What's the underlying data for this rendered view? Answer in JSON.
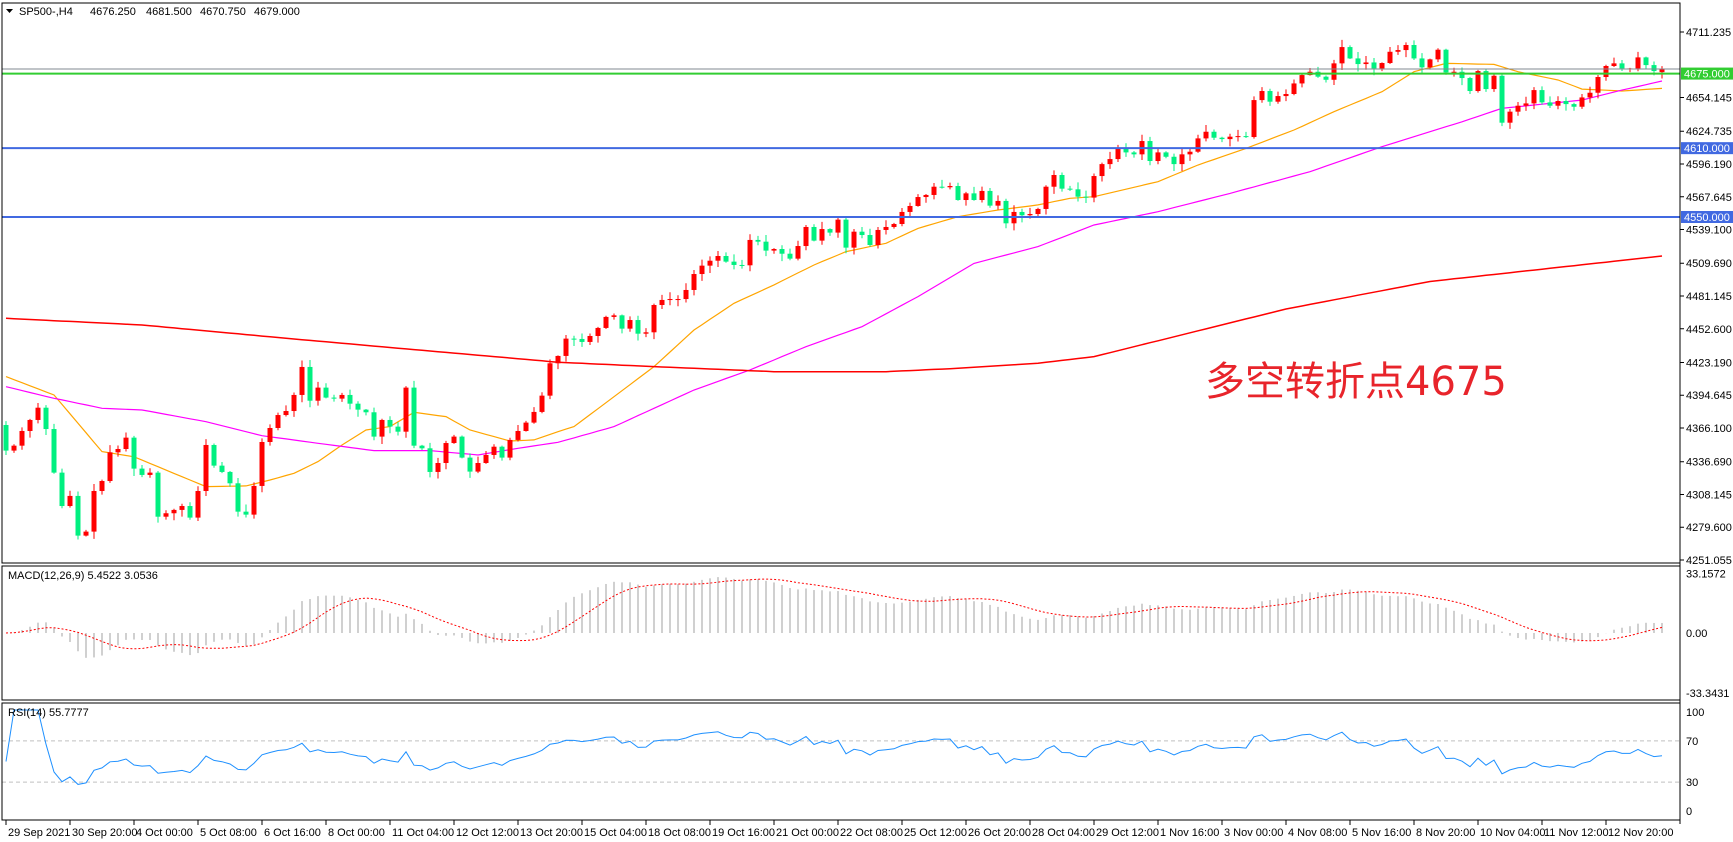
{
  "header": {
    "symbol": "SP500-,H4",
    "open": "4676.250",
    "high": "4681.500",
    "low": "4670.750",
    "close": "4679.000"
  },
  "annotation": "多空转折点4675",
  "colors": {
    "bull": "#ff0000",
    "bear": "#00f080",
    "ma_fast": "#ffa500",
    "ma_mid": "#ff00ff",
    "ma_slow": "#ff0000",
    "level_green": "#32cd32",
    "level_blue": "#4169e1",
    "bid_line": "#808890",
    "macd_hist": "#c0c0c0",
    "macd_signal": "#ff0000",
    "rsi": "#1e90ff"
  },
  "price_axis": {
    "ylim": [
      4251.055,
      4711.235
    ],
    "ticks": [
      "4711.235",
      "4654.145",
      "4624.735",
      "4596.190",
      "4567.645",
      "4539.100",
      "4509.690",
      "4481.145",
      "4452.600",
      "4423.190",
      "4394.645",
      "4366.100",
      "4336.690",
      "4308.145",
      "4279.600",
      "4251.055"
    ]
  },
  "levels": [
    {
      "value": 4675.0,
      "label": "4675.000",
      "color": "#32cd32"
    },
    {
      "value": 4610.0,
      "label": "4610.000",
      "color": "#4169e1"
    },
    {
      "value": 4550.0,
      "label": "4550.000",
      "color": "#4169e1"
    }
  ],
  "bid": 4679.0,
  "chart_data": {
    "type": "candlestick",
    "first_open": 4368.7,
    "closes": [
      4346.4,
      4350.7,
      4363.5,
      4373.1,
      4383.8,
      4365.2,
      4327.2,
      4298.1,
      4306.9,
      4272.3,
      4275.8,
      4311.2,
      4319.9,
      4344.9,
      4347.8,
      4357.7,
      4330.7,
      4325.2,
      4327.2,
      4288.8,
      4291.8,
      4294.7,
      4298.1,
      4288.0,
      4311.2,
      4351.3,
      4333.3,
      4327.8,
      4317.9,
      4293.2,
      4290.6,
      4315.6,
      4353.9,
      4366.1,
      4377.4,
      4380.9,
      4394.9,
      4419.3,
      4389.9,
      4401.3,
      4392.6,
      4391.7,
      4394.9,
      4387.3,
      4382.1,
      4379.8,
      4358.6,
      4373.1,
      4367.3,
      4362.9,
      4401.3,
      4350.7,
      4348.4,
      4327.8,
      4335.6,
      4353.0,
      4358.6,
      4340.3,
      4328.1,
      4335.6,
      4342.6,
      4349.8,
      4340.3,
      4355.7,
      4363.5,
      4370.8,
      4380.1,
      4394.3,
      4422.5,
      4428.9,
      4444.0,
      4443.7,
      4441.1,
      4446.3,
      4453.3,
      4462.9,
      4464.3,
      4452.7,
      4460.2,
      4448.3,
      4449.5,
      4473.3,
      4477.7,
      4478.5,
      4478.5,
      4486.4,
      4500.3,
      4507.6,
      4511.9,
      4516.0,
      4511.1,
      4508.2,
      4507.9,
      4530.0,
      4528.5,
      4520.7,
      4522.1,
      4518.0,
      4513.7,
      4524.7,
      4541.3,
      4529.4,
      4539.5,
      4536.4,
      4547.7,
      4523.3,
      4537.2,
      4534.3,
      4525.6,
      4538.7,
      4541.3,
      4543.9,
      4554.4,
      4559.6,
      4567.4,
      4569.2,
      4576.4,
      4575.9,
      4577.0,
      4564.8,
      4570.6,
      4564.8,
      4572.7,
      4559.9,
      4564.0,
      4544.5,
      4554.4,
      4551.5,
      4552.6,
      4557.0,
      4576.4,
      4586.6,
      4574.7,
      4574.1,
      4567.7,
      4566.9,
      4585.7,
      4596.1,
      4600.5,
      4610.4,
      4606.3,
      4604.6,
      4616.2,
      4598.8,
      4606.3,
      4602.5,
      4596.1,
      4604.6,
      4606.9,
      4618.5,
      4624.3,
      4619.1,
      4617.9,
      4620.0,
      4620.5,
      4619.7,
      4651.9,
      4659.8,
      4650.5,
      4655.4,
      4657.2,
      4666.4,
      4673.7,
      4676.6,
      4672.3,
      4669.6,
      4683.9,
      4698.1,
      4688.2,
      4683.3,
      4684.7,
      4679.5,
      4684.2,
      4694.0,
      4695.5,
      4699.9,
      4688.2,
      4680.4,
      4687.4,
      4695.8,
      4676.0,
      4676.6,
      4671.1,
      4659.8,
      4677.2,
      4661.5,
      4673.1,
      4632.2,
      4641.8,
      4647.0,
      4649.0,
      4660.6,
      4649.9,
      4647.0,
      4651.1,
      4648.4,
      4646.1,
      4654.2,
      4658.3,
      4672.0,
      4681.6,
      4683.9,
      4679.5,
      4679.5,
      4689.1,
      4682.4,
      4677.2
    ],
    "last_candle": {
      "open": 4676.25,
      "high": 4681.5,
      "low": 4670.75,
      "close": 4679.0
    },
    "moving_averages": [
      {
        "color": "#ffa500",
        "points": [
          [
            0,
            4410.9
          ],
          [
            6,
            4394.9
          ],
          [
            12,
            4345.5
          ],
          [
            16,
            4341
          ],
          [
            25,
            4315
          ],
          [
            30,
            4315.6
          ],
          [
            33,
            4320.8
          ],
          [
            36,
            4326.6
          ],
          [
            39,
            4336.8
          ],
          [
            42,
            4351.3
          ],
          [
            45,
            4364.4
          ],
          [
            48,
            4367.3
          ],
          [
            51,
            4379.8
          ],
          [
            55,
            4376
          ],
          [
            58,
            4364.4
          ],
          [
            63,
            4354.8
          ],
          [
            66,
            4355.7
          ],
          [
            69,
            4362.9
          ],
          [
            71,
            4367.3
          ],
          [
            76,
            4393.4
          ],
          [
            81,
            4419.6
          ],
          [
            86,
            4451.5
          ],
          [
            91,
            4474.8
          ],
          [
            96,
            4490.8
          ],
          [
            101,
            4508.2
          ],
          [
            105,
            4519.8
          ],
          [
            110,
            4527.1
          ],
          [
            114,
            4540.1
          ],
          [
            119,
            4550.3
          ],
          [
            124,
            4556.1
          ],
          [
            129,
            4560.5
          ],
          [
            133,
            4566.3
          ],
          [
            136,
            4567.7
          ],
          [
            144,
            4580.8
          ],
          [
            149,
            4595.3
          ],
          [
            155,
            4609.8
          ],
          [
            161,
            4625.8
          ],
          [
            166,
            4641.8
          ],
          [
            172,
            4659.2
          ],
          [
            176,
            4676.6
          ],
          [
            180,
            4683.9
          ],
          [
            186,
            4683.0
          ],
          [
            189,
            4676.6
          ],
          [
            194,
            4669.4
          ],
          [
            197,
            4661.5
          ],
          [
            202,
            4659.8
          ],
          [
            207,
            4662.1
          ]
        ]
      },
      {
        "color": "#ff00ff",
        "points": [
          [
            0,
            4402.1
          ],
          [
            6,
            4392
          ],
          [
            12,
            4383.3
          ],
          [
            17,
            4381.8
          ],
          [
            25,
            4371.6
          ],
          [
            32,
            4359.4
          ],
          [
            39,
            4352.8
          ],
          [
            46,
            4346.4
          ],
          [
            53,
            4346.4
          ],
          [
            59,
            4342.6
          ],
          [
            64,
            4348.4
          ],
          [
            69,
            4353.6
          ],
          [
            76,
            4367.3
          ],
          [
            86,
            4399.2
          ],
          [
            93,
            4416.7
          ],
          [
            100,
            4437.0
          ],
          [
            107,
            4454.4
          ],
          [
            114,
            4480.6
          ],
          [
            121,
            4509.6
          ],
          [
            129,
            4524.2
          ],
          [
            136,
            4543.0
          ],
          [
            144,
            4554.6
          ],
          [
            153,
            4570.6
          ],
          [
            163,
            4589.5
          ],
          [
            172,
            4611.3
          ],
          [
            182,
            4633.0
          ],
          [
            187,
            4644.7
          ],
          [
            197,
            4651.9
          ],
          [
            202,
            4660.6
          ],
          [
            207,
            4668.5
          ]
        ]
      },
      {
        "color": "#ff0000",
        "points": [
          [
            0,
            4461.7
          ],
          [
            17,
            4455.9
          ],
          [
            35,
            4444.3
          ],
          [
            53,
            4433.2
          ],
          [
            69,
            4423.4
          ],
          [
            81,
            4419.6
          ],
          [
            96,
            4415.2
          ],
          [
            110,
            4415.2
          ],
          [
            119,
            4418.1
          ],
          [
            129,
            4422.5
          ],
          [
            136,
            4428.3
          ],
          [
            160,
            4469.8
          ],
          [
            178,
            4493.8
          ],
          [
            207,
            4516.0
          ]
        ]
      }
    ],
    "time_labels": [
      "29 Sep 2021",
      "30 Sep 20:00",
      "4 Oct 00:00",
      "5 Oct 08:00",
      "6 Oct 16:00",
      "8 Oct 00:00",
      "11 Oct 04:00",
      "12 Oct 12:00",
      "13 Oct 20:00",
      "15 Oct 04:00",
      "18 Oct 08:00",
      "19 Oct 16:00",
      "21 Oct 00:00",
      "22 Oct 08:00",
      "25 Oct 12:00",
      "26 Oct 20:00",
      "28 Oct 04:00",
      "29 Oct 12:00",
      "1 Nov 16:00",
      "3 Nov 00:00",
      "4 Nov 08:00",
      "5 Nov 16:00",
      "8 Nov 20:00",
      "10 Nov 04:00",
      "11 Nov 12:00",
      "12 Nov 20:00"
    ]
  },
  "macd": {
    "label": "MACD(12,26,9) 5.4522 3.0536",
    "ylim": [
      -33.3431,
      33.1572
    ],
    "ticks": [
      "33.1572",
      "0.00",
      "-33.3431"
    ]
  },
  "rsi": {
    "label": "RSI(14) 55.7777",
    "levels": [
      70,
      30
    ],
    "ticks": [
      "100",
      "70",
      "30",
      "0"
    ]
  }
}
